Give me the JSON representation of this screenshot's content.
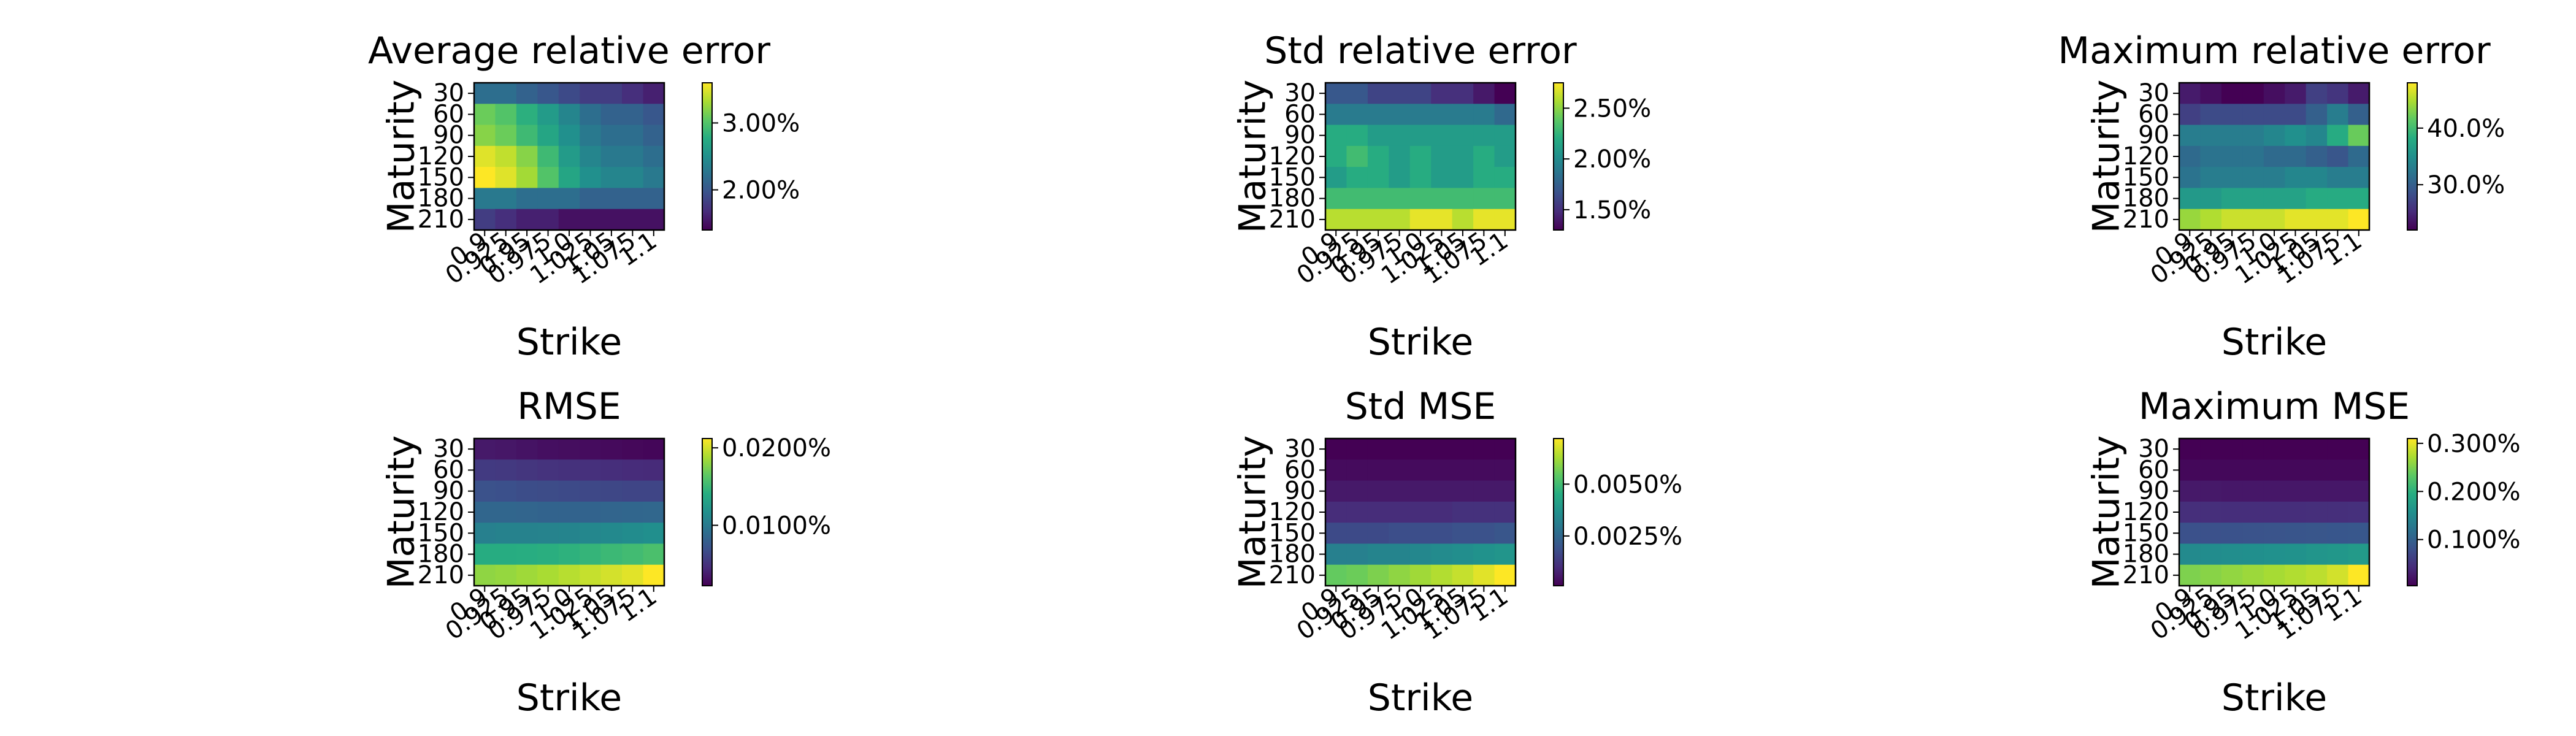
{
  "chart_data": [
    {
      "type": "heatmap",
      "title": "Average relative error",
      "xlabel": "Strike",
      "ylabel": "Maturity",
      "x_ticklabels": [
        "0.9",
        "0.925",
        "0.95",
        "0.975",
        "1.0",
        "1.025",
        "1.05",
        "1.075",
        "1.1"
      ],
      "y_ticklabels": [
        "30",
        "60",
        "90",
        "120",
        "150",
        "180",
        "210"
      ],
      "values": [
        [
          2.2,
          2.2,
          2.1,
          2.0,
          1.9,
          1.8,
          1.8,
          1.7,
          1.6
        ],
        [
          3.1,
          3.0,
          2.8,
          2.6,
          2.4,
          2.2,
          2.1,
          2.1,
          2.0
        ],
        [
          3.2,
          3.1,
          2.9,
          2.7,
          2.5,
          2.3,
          2.2,
          2.2,
          2.1
        ],
        [
          3.5,
          3.4,
          3.2,
          2.9,
          2.6,
          2.4,
          2.3,
          2.3,
          2.2
        ],
        [
          3.6,
          3.5,
          3.3,
          3.0,
          2.7,
          2.5,
          2.4,
          2.4,
          2.3
        ],
        [
          2.3,
          2.3,
          2.2,
          2.2,
          2.2,
          2.1,
          2.1,
          2.1,
          2.1
        ],
        [
          1.8,
          1.7,
          1.6,
          1.6,
          1.5,
          1.5,
          1.5,
          1.5,
          1.5
        ]
      ],
      "vmin": 1.4,
      "vmax": 3.6,
      "colorbar_ticks": [
        {
          "value": 2.0,
          "label": "2.00%"
        },
        {
          "value": 3.0,
          "label": "3.00%"
        }
      ]
    },
    {
      "type": "heatmap",
      "title": "Std relative error",
      "xlabel": "Strike",
      "ylabel": "Maturity",
      "x_ticklabels": [
        "0.9",
        "0.925",
        "0.95",
        "0.975",
        "1.0",
        "1.025",
        "1.05",
        "1.075",
        "1.1"
      ],
      "y_ticklabels": [
        "30",
        "60",
        "90",
        "120",
        "150",
        "180",
        "210"
      ],
      "values": [
        [
          1.7,
          1.7,
          1.6,
          1.6,
          1.6,
          1.5,
          1.5,
          1.4,
          1.3
        ],
        [
          1.9,
          1.9,
          1.9,
          1.9,
          1.9,
          1.9,
          1.9,
          1.9,
          1.8
        ],
        [
          2.2,
          2.2,
          2.1,
          2.1,
          2.1,
          2.1,
          2.1,
          2.1,
          2.1
        ],
        [
          2.2,
          2.3,
          2.2,
          2.1,
          2.2,
          2.1,
          2.1,
          2.2,
          2.1
        ],
        [
          2.1,
          2.2,
          2.2,
          2.1,
          2.2,
          2.1,
          2.1,
          2.2,
          2.2
        ],
        [
          2.3,
          2.3,
          2.3,
          2.3,
          2.3,
          2.3,
          2.3,
          2.3,
          2.3
        ],
        [
          2.6,
          2.6,
          2.6,
          2.6,
          2.7,
          2.7,
          2.6,
          2.7,
          2.7
        ]
      ],
      "vmin": 1.3,
      "vmax": 2.75,
      "colorbar_ticks": [
        {
          "value": 1.5,
          "label": "1.50%"
        },
        {
          "value": 2.0,
          "label": "2.00%"
        },
        {
          "value": 2.5,
          "label": "2.50%"
        }
      ]
    },
    {
      "type": "heatmap",
      "title": "Maximum relative error",
      "xlabel": "Strike",
      "ylabel": "Maturity",
      "x_ticklabels": [
        "0.9",
        "0.925",
        "0.95",
        "0.975",
        "1.0",
        "1.025",
        "1.05",
        "1.075",
        "1.1"
      ],
      "y_ticklabels": [
        "30",
        "60",
        "90",
        "120",
        "150",
        "180",
        "210"
      ],
      "values": [
        [
          24,
          23,
          22,
          22,
          23,
          24,
          27,
          26,
          24
        ],
        [
          27,
          28,
          28,
          28,
          28,
          28,
          30,
          33,
          30
        ],
        [
          33,
          33,
          33,
          33,
          34,
          35,
          34,
          38,
          42
        ],
        [
          31,
          32,
          32,
          32,
          31,
          31,
          30,
          29,
          31
        ],
        [
          32,
          33,
          33,
          33,
          33,
          34,
          34,
          33,
          33
        ],
        [
          36,
          36,
          37,
          37,
          37,
          37,
          38,
          38,
          38
        ],
        [
          44,
          45,
          46,
          46,
          46,
          47,
          47,
          47,
          48
        ]
      ],
      "vmin": 22,
      "vmax": 48,
      "colorbar_ticks": [
        {
          "value": 30,
          "label": "30.0%"
        },
        {
          "value": 40,
          "label": "40.0%"
        }
      ]
    },
    {
      "type": "heatmap",
      "title": "RMSE",
      "xlabel": "Strike",
      "ylabel": "Maturity",
      "x_ticklabels": [
        "0.9",
        "0.925",
        "0.95",
        "0.975",
        "1.0",
        "1.025",
        "1.05",
        "1.075",
        "1.1"
      ],
      "y_ticklabels": [
        "30",
        "60",
        "90",
        "120",
        "150",
        "180",
        "210"
      ],
      "values": [
        [
          0.0035,
          0.0034,
          0.0032,
          0.003,
          0.0029,
          0.0028,
          0.0027,
          0.0026,
          0.0025
        ],
        [
          0.0055,
          0.0054,
          0.0052,
          0.005,
          0.0049,
          0.0048,
          0.0047,
          0.0046,
          0.0045
        ],
        [
          0.007,
          0.0069,
          0.0067,
          0.0066,
          0.0065,
          0.0064,
          0.0063,
          0.0062,
          0.0062
        ],
        [
          0.0085,
          0.0085,
          0.0084,
          0.0083,
          0.0083,
          0.0083,
          0.0084,
          0.0085,
          0.0086
        ],
        [
          0.0105,
          0.0106,
          0.0106,
          0.0107,
          0.0108,
          0.011,
          0.0112,
          0.0114,
          0.0116
        ],
        [
          0.014,
          0.014,
          0.0141,
          0.0142,
          0.0144,
          0.0147,
          0.015,
          0.0153,
          0.0157
        ],
        [
          0.018,
          0.0182,
          0.0185,
          0.0188,
          0.0192,
          0.0196,
          0.02,
          0.0204,
          0.0212
        ]
      ],
      "vmin": 0.0022,
      "vmax": 0.0212,
      "colorbar_ticks": [
        {
          "value": 0.01,
          "label": "0.0100%"
        },
        {
          "value": 0.02,
          "label": "0.0200%"
        }
      ]
    },
    {
      "type": "heatmap",
      "title": "Std MSE",
      "xlabel": "Strike",
      "ylabel": "Maturity",
      "x_ticklabels": [
        "0.9",
        "0.925",
        "0.95",
        "0.975",
        "1.0",
        "1.025",
        "1.05",
        "1.075",
        "1.1"
      ],
      "y_ticklabels": [
        "30",
        "60",
        "90",
        "120",
        "150",
        "180",
        "210"
      ],
      "values": [
        [
          0.0001,
          0.0001,
          0.0001,
          0.0001,
          0.0001,
          0.0001,
          0.0001,
          0.0001,
          0.0001
        ],
        [
          0.0003,
          0.0003,
          0.0003,
          0.0003,
          0.0003,
          0.0003,
          0.0003,
          0.0003,
          0.0003
        ],
        [
          0.0006,
          0.0006,
          0.0006,
          0.0006,
          0.0006,
          0.0006,
          0.0006,
          0.0006,
          0.0006
        ],
        [
          0.001,
          0.001,
          0.001,
          0.001,
          0.001,
          0.001,
          0.0011,
          0.0011,
          0.0011
        ],
        [
          0.0017,
          0.0017,
          0.0017,
          0.0018,
          0.0018,
          0.0018,
          0.0019,
          0.0019,
          0.002
        ],
        [
          0.0032,
          0.0032,
          0.0033,
          0.0033,
          0.0034,
          0.0035,
          0.0036,
          0.0037,
          0.0038
        ],
        [
          0.0055,
          0.0056,
          0.0058,
          0.006,
          0.0062,
          0.0064,
          0.0066,
          0.0069,
          0.0072
        ]
      ],
      "vmin": 0.0001,
      "vmax": 0.0072,
      "colorbar_ticks": [
        {
          "value": 0.0025,
          "label": "0.0025%"
        },
        {
          "value": 0.005,
          "label": "0.0050%"
        }
      ]
    },
    {
      "type": "heatmap",
      "title": "Maximum MSE",
      "xlabel": "Strike",
      "ylabel": "Maturity",
      "x_ticklabels": [
        "0.9",
        "0.925",
        "0.95",
        "0.975",
        "1.0",
        "1.025",
        "1.05",
        "1.075",
        "1.1"
      ],
      "y_ticklabels": [
        "30",
        "60",
        "90",
        "120",
        "150",
        "180",
        "210"
      ],
      "values": [
        [
          0.004,
          0.004,
          0.004,
          0.004,
          0.004,
          0.004,
          0.004,
          0.004,
          0.004
        ],
        [
          0.01,
          0.01,
          0.01,
          0.01,
          0.01,
          0.01,
          0.01,
          0.01,
          0.01
        ],
        [
          0.025,
          0.025,
          0.024,
          0.024,
          0.024,
          0.024,
          0.024,
          0.024,
          0.024
        ],
        [
          0.045,
          0.045,
          0.044,
          0.044,
          0.044,
          0.044,
          0.045,
          0.045,
          0.046
        ],
        [
          0.08,
          0.081,
          0.082,
          0.083,
          0.084,
          0.085,
          0.086,
          0.087,
          0.088
        ],
        [
          0.15,
          0.152,
          0.154,
          0.156,
          0.158,
          0.16,
          0.163,
          0.166,
          0.17
        ],
        [
          0.25,
          0.255,
          0.26,
          0.265,
          0.27,
          0.275,
          0.28,
          0.29,
          0.31
        ]
      ],
      "vmin": 0.004,
      "vmax": 0.31,
      "colorbar_ticks": [
        {
          "value": 0.1,
          "label": "0.100%"
        },
        {
          "value": 0.2,
          "label": "0.200%"
        },
        {
          "value": 0.3,
          "label": "0.300%"
        }
      ]
    }
  ]
}
